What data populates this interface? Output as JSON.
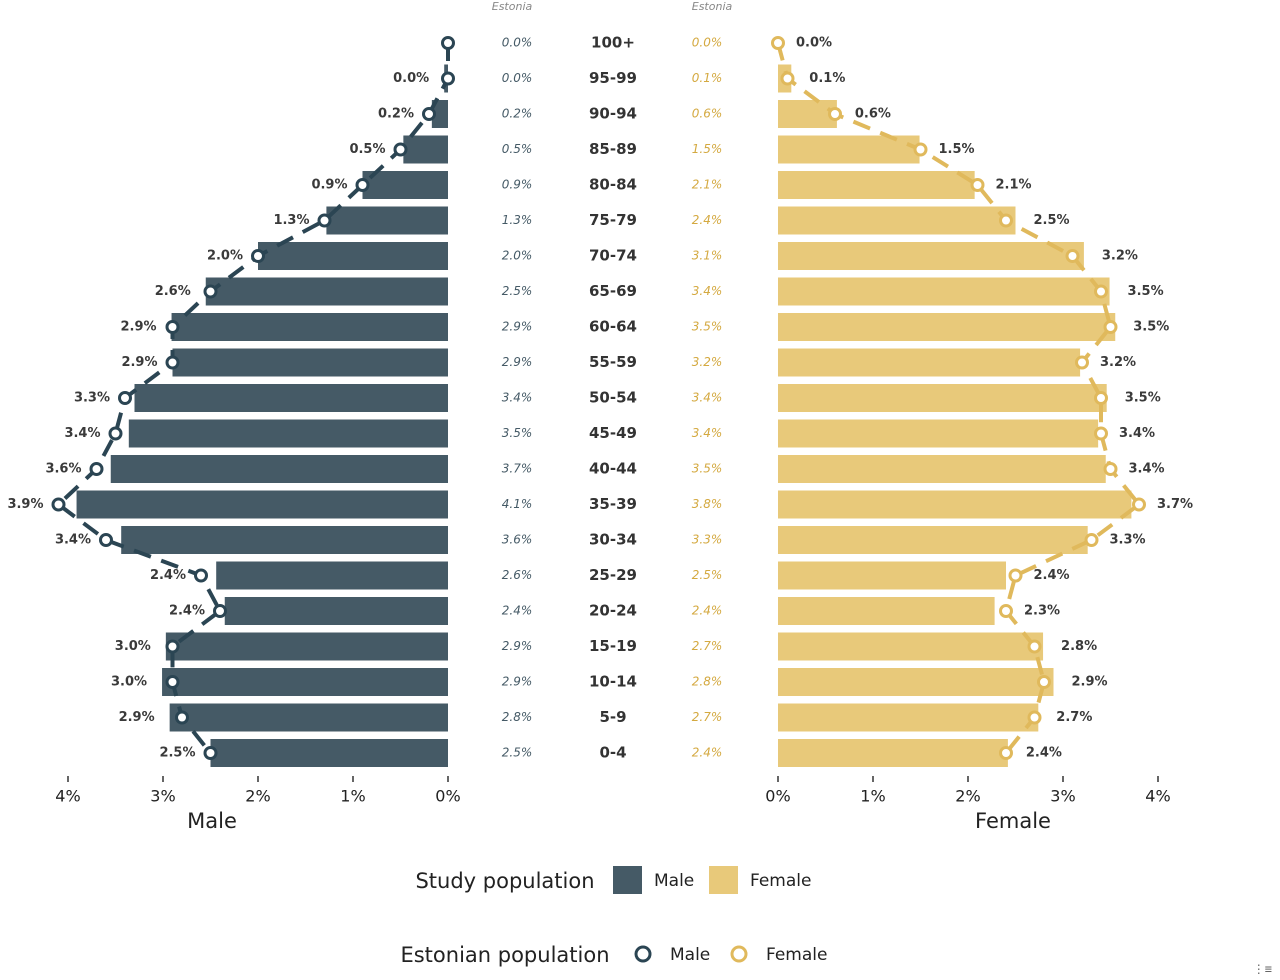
{
  "chart_data": {
    "type": "bar",
    "categories": [
      "100+",
      "95-99",
      "90-94",
      "85-89",
      "80-84",
      "75-79",
      "70-74",
      "65-69",
      "60-64",
      "55-59",
      "50-54",
      "45-49",
      "40-44",
      "35-39",
      "30-34",
      "25-29",
      "20-24",
      "15-19",
      "10-14",
      "5-9",
      "0-4"
    ],
    "column_headers": {
      "male_estonia": "Estonia",
      "female_estonia": "Estonia"
    },
    "series": [
      {
        "name": "Male",
        "group": "Study population",
        "color": "#455a66",
        "values": [
          0,
          0.04,
          0.17,
          0.47,
          0.9,
          1.28,
          2.0,
          2.55,
          2.91,
          2.9,
          3.3,
          3.36,
          3.55,
          3.91,
          3.44,
          2.44,
          2.35,
          2.97,
          3.01,
          2.93,
          2.5
        ],
        "labels": [
          null,
          "0.0%",
          "0.2%",
          "0.5%",
          "0.9%",
          "1.3%",
          "2.0%",
          "2.6%",
          "2.9%",
          "2.9%",
          "3.3%",
          "3.4%",
          "3.6%",
          "3.9%",
          "3.4%",
          "2.4%",
          "2.4%",
          "3.0%",
          "3.0%",
          "2.9%",
          "2.5%"
        ]
      },
      {
        "name": "Female",
        "group": "Study population",
        "color": "#e8c97a",
        "values": [
          0,
          0.14,
          0.62,
          1.49,
          2.07,
          2.5,
          3.22,
          3.49,
          3.55,
          3.18,
          3.46,
          3.37,
          3.45,
          3.72,
          3.26,
          2.4,
          2.28,
          2.79,
          2.9,
          2.74,
          2.42
        ],
        "labels": [
          "0.0%",
          "0.1%",
          "0.6%",
          "1.5%",
          "2.1%",
          "2.5%",
          "3.2%",
          "3.5%",
          "3.5%",
          "3.2%",
          "3.5%",
          "3.4%",
          "3.4%",
          "3.7%",
          "3.3%",
          "2.4%",
          "2.3%",
          "2.8%",
          "2.9%",
          "2.7%",
          "2.4%"
        ]
      },
      {
        "name": "Male",
        "group": "Estonian population",
        "color": "#2b4553",
        "values": [
          0.0,
          0.0,
          0.2,
          0.5,
          0.9,
          1.3,
          2.0,
          2.5,
          2.9,
          2.9,
          3.4,
          3.5,
          3.7,
          4.1,
          3.6,
          2.6,
          2.4,
          2.9,
          2.9,
          2.8,
          2.5
        ],
        "labels": [
          "0.0%",
          "0.0%",
          "0.2%",
          "0.5%",
          "0.9%",
          "1.3%",
          "2.0%",
          "2.5%",
          "2.9%",
          "2.9%",
          "3.4%",
          "3.5%",
          "3.7%",
          "4.1%",
          "3.6%",
          "2.6%",
          "2.4%",
          "2.9%",
          "2.9%",
          "2.8%",
          "2.5%"
        ]
      },
      {
        "name": "Female",
        "group": "Estonian population",
        "color": "#e0b95c",
        "values": [
          0.0,
          0.1,
          0.6,
          1.5,
          2.1,
          2.4,
          3.1,
          3.4,
          3.5,
          3.2,
          3.4,
          3.4,
          3.5,
          3.8,
          3.3,
          2.5,
          2.4,
          2.7,
          2.8,
          2.7,
          2.4
        ],
        "labels": [
          "0.0%",
          "0.1%",
          "0.6%",
          "1.5%",
          "2.1%",
          "2.4%",
          "3.1%",
          "3.4%",
          "3.5%",
          "3.2%",
          "3.4%",
          "3.4%",
          "3.5%",
          "3.8%",
          "3.3%",
          "2.5%",
          "2.4%",
          "2.7%",
          "2.8%",
          "2.7%",
          "2.4%"
        ]
      }
    ],
    "left_axis": {
      "title": "Male",
      "ticks": [
        "4%",
        "3%",
        "2%",
        "1%",
        "0%"
      ],
      "tick_values": [
        4,
        3,
        2,
        1,
        0
      ],
      "range": [
        0,
        4
      ],
      "direction": "reversed"
    },
    "right_axis": {
      "title": "Female",
      "ticks": [
        "0%",
        "1%",
        "2%",
        "3%",
        "4%"
      ],
      "tick_values": [
        0,
        1,
        2,
        3,
        4
      ],
      "range": [
        0,
        4
      ]
    },
    "legend": {
      "placement": "bottom",
      "study_title": "Study population",
      "estonian_title": "Estonian population",
      "study_items": [
        {
          "label": "Male",
          "color": "#455a66"
        },
        {
          "label": "Female",
          "color": "#e8c97a"
        }
      ],
      "estonian_items": [
        {
          "label": "Male",
          "color": "#2b4553"
        },
        {
          "label": "Female",
          "color": "#e0b95c"
        }
      ]
    },
    "colors": {
      "male_bar": "#455a66",
      "female_bar": "#e8c97a",
      "male_line": "#2b4553",
      "female_line": "#e0b95c",
      "male_est_text": "#455a66",
      "female_est_text": "#d4a940"
    },
    "grid": false
  }
}
